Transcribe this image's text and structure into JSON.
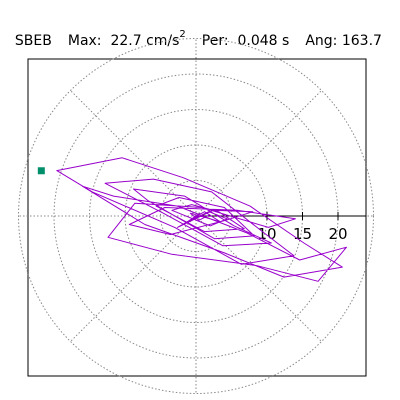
{
  "header": {
    "station": "SBEB",
    "max_label": "Max:",
    "max_value": "22.7",
    "max_unit": "cm/s",
    "max_unit_sup": "2",
    "per_label": "Per:",
    "per_value": "0.048 s",
    "ang_label": "Ang:",
    "ang_value": "163.7"
  },
  "colors": {
    "trace": "#9900cc",
    "marker": "#008f6b",
    "grid": "#888888",
    "frame": "#000000"
  },
  "chart_data": {
    "type": "line",
    "subtype": "polar particle-motion trace",
    "title": "",
    "rings": [
      5,
      10,
      15,
      20,
      25
    ],
    "ring_labels": [
      "10",
      "15",
      "20"
    ],
    "radial_lines_deg": [
      0,
      45,
      90,
      135,
      180,
      225,
      270,
      315
    ],
    "grid": true,
    "peak_marker": {
      "amplitude": 22.7,
      "angle_deg": 163.7
    },
    "series": [
      {
        "x": [
          0.6,
          -1.2,
          1.8,
          4.4,
          2.0,
          -3.4,
          -0.6,
          3.2,
          6.8,
          1.2,
          -5.6,
          -2.4,
          4.0,
          8.2,
          2.6,
          -6.8,
          -8.8,
          -1.6,
          5.4,
          10.6,
          3.8,
          -4.6,
          -12.8,
          -6.0,
          2.2,
          9.6,
          13.8,
          6.4,
          -3.0,
          -14.6,
          -19.6,
          -10.4,
          -1.8,
          7.6,
          15.2,
          20.6,
          12.4,
          4.0,
          -7.2,
          -16.0,
          -11.6,
          -2.6,
          7.2,
          14.6,
          21.2,
          17.2,
          8.6,
          -3.4,
          -12.4,
          -8.6,
          0.8,
          10.2,
          14.0,
          5.8,
          -4.4,
          -9.4,
          -3.6,
          4.2,
          8.0,
          2.4,
          -2.6,
          1.2,
          3.4,
          -0.8,
          0.4,
          2.0
        ],
        "y": [
          0.4,
          -0.8,
          0.6,
          -0.4,
          -1.4,
          0.8,
          1.6,
          0.6,
          -1.8,
          -2.2,
          1.4,
          2.6,
          1.2,
          -2.8,
          -3.2,
          2.2,
          3.8,
          2.8,
          -1.4,
          -3.8,
          -4.2,
          0.4,
          4.6,
          5.2,
          3.4,
          -2.4,
          -5.6,
          -6.8,
          -1.6,
          3.4,
          6.4,
          8.2,
          5.4,
          1.4,
          -3.8,
          -7.2,
          -8.6,
          -5.2,
          -1.2,
          4.2,
          2.8,
          1.4,
          -2.4,
          -6.2,
          -4.4,
          -9.2,
          -7.0,
          -5.4,
          -3.0,
          1.8,
          1.2,
          -1.6,
          -0.4,
          0.8,
          1.2,
          -1.2,
          -2.6,
          -0.6,
          0.6,
          0.8,
          -1.6,
          0.6,
          -0.8,
          0.4,
          -0.6,
          0.2
        ]
      }
    ]
  }
}
